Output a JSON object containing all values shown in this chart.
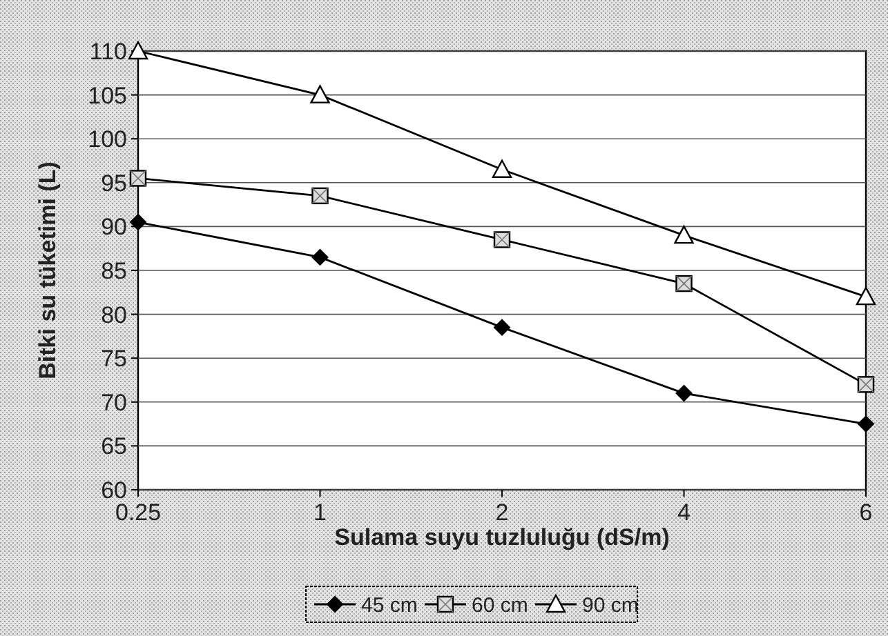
{
  "chart_data": {
    "type": "line",
    "xlabel": "Sulama suyu tuzluluğu (dS/m)",
    "ylabel": "Bitki su tüketimi (L)",
    "categories": [
      "0.25",
      "1",
      "2",
      "4",
      "6"
    ],
    "ylim": [
      60,
      110
    ],
    "yticks": [
      60,
      65,
      70,
      75,
      80,
      85,
      90,
      95,
      100,
      105,
      110
    ],
    "grid": "y",
    "legend": "bottom",
    "line_style": "solid",
    "series": [
      {
        "name": "45 cm",
        "color": "#000000",
        "marker": "diamond",
        "values": [
          90.5,
          86.5,
          78.5,
          71,
          67.5
        ]
      },
      {
        "name": "60 cm",
        "color": "#000000",
        "marker": "square",
        "values": [
          95.5,
          93.5,
          88.5,
          83.5,
          72
        ]
      },
      {
        "name": "90 cm",
        "color": "#000000",
        "marker": "triangle",
        "values": [
          110,
          105,
          96.5,
          89,
          82
        ]
      }
    ]
  }
}
